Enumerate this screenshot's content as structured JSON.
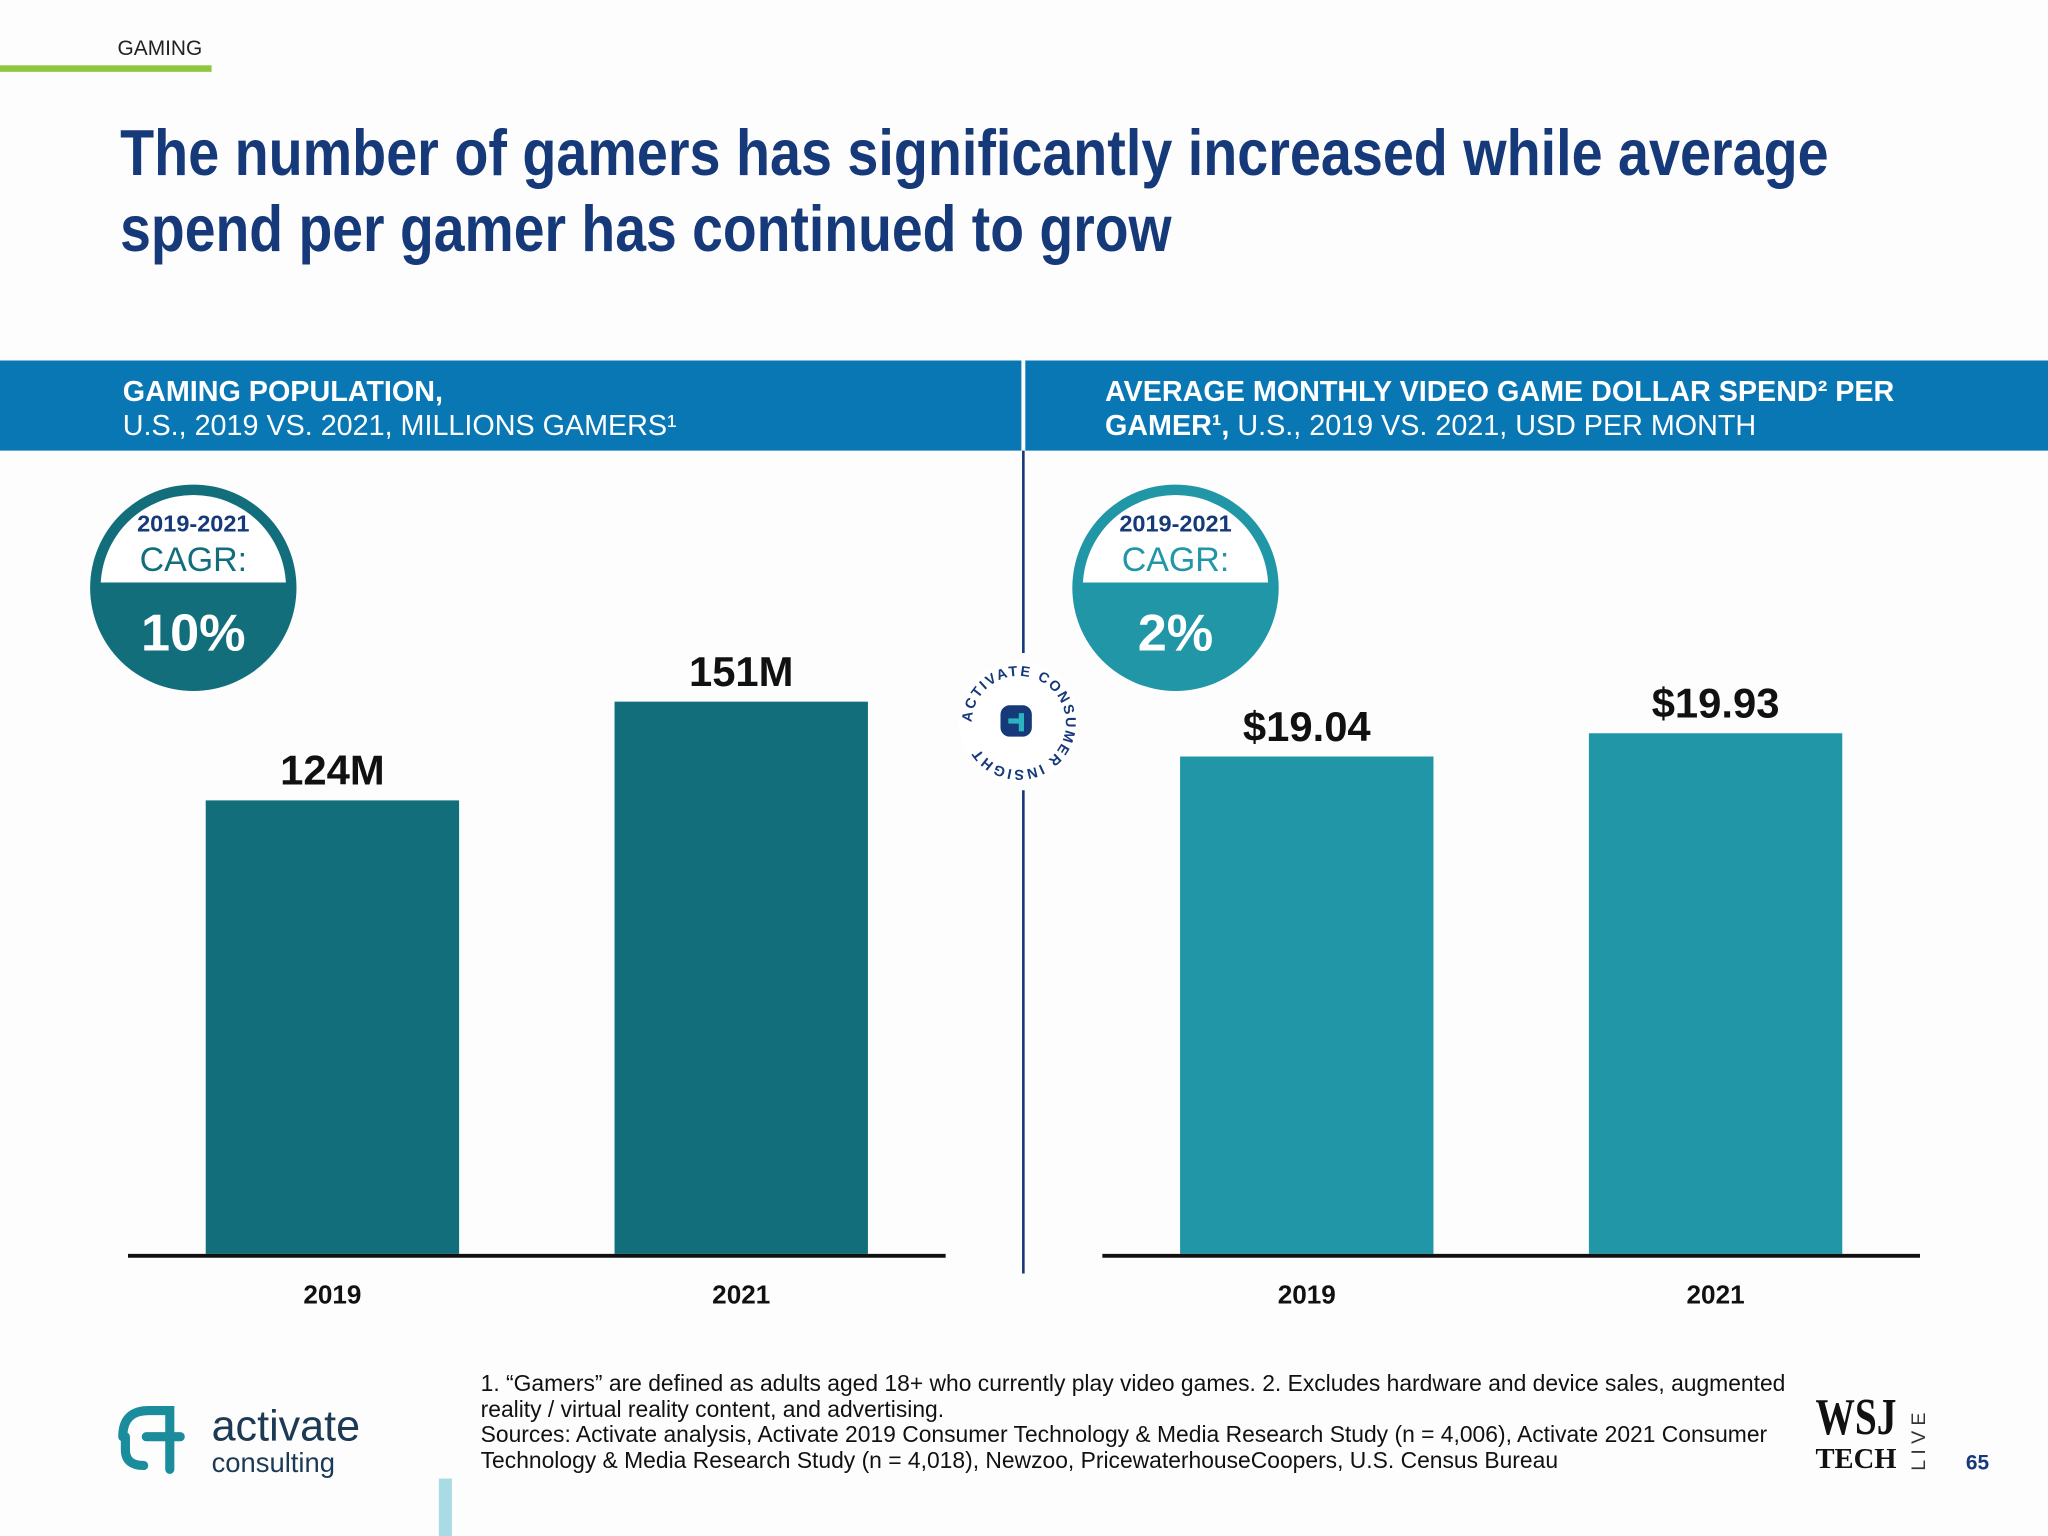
{
  "section": "GAMING",
  "title": [
    "The number of gamers has significantly increased while average",
    "spend per gamer has continued to grow"
  ],
  "chart_data": [
    {
      "type": "bar",
      "title": [
        "GAMING POPULATION,"
      ],
      "subtitle": "U.S., 2019 VS. 2021, MILLIONS GAMERS¹",
      "categories": [
        "2019",
        "2021"
      ],
      "values": [
        124,
        151
      ],
      "value_labels": [
        "124M",
        "151M"
      ],
      "color": "#136e7c",
      "ylim": [
        0,
        200
      ],
      "cagr": {
        "period": "2019-2021",
        "label": "CAGR:",
        "value": "10%"
      }
    },
    {
      "type": "bar",
      "title": [
        "AVERAGE MONTHLY VIDEO GAME DOLLAR SPEND² PER",
        "GAMER¹,"
      ],
      "subtitle": "U.S., 2019 VS. 2021, USD PER MONTH",
      "categories": [
        "2019",
        "2021"
      ],
      "values": [
        19.04,
        19.93
      ],
      "value_labels": [
        "$19.04",
        "$19.93"
      ],
      "color": "#2096a6",
      "ylim": [
        0,
        28
      ],
      "cagr": {
        "period": "2019-2021",
        "label": "CAGR:",
        "value": "2%"
      }
    }
  ],
  "seal": "ACTIVATE CONSUMER INSIGHT",
  "footnotes": [
    "1. “Gamers” are defined as adults aged 18+ who currently play video games.  2. Excludes hardware and device sales, augmented",
    "reality / virtual reality content, and advertising.",
    "Sources: Activate analysis, Activate 2019 Consumer Technology & Media Research Study (n = 4,006), Activate 2021 Consumer",
    "Technology & Media Research Study (n = 4,018), Newzoo, PricewaterhouseCoopers, U.S. Census Bureau"
  ],
  "logo": {
    "name": "activate",
    "tagline": "consulting"
  },
  "partner": {
    "name": "WSJ",
    "sub": "TECH",
    "side": "LIVE"
  },
  "page_number": "65"
}
